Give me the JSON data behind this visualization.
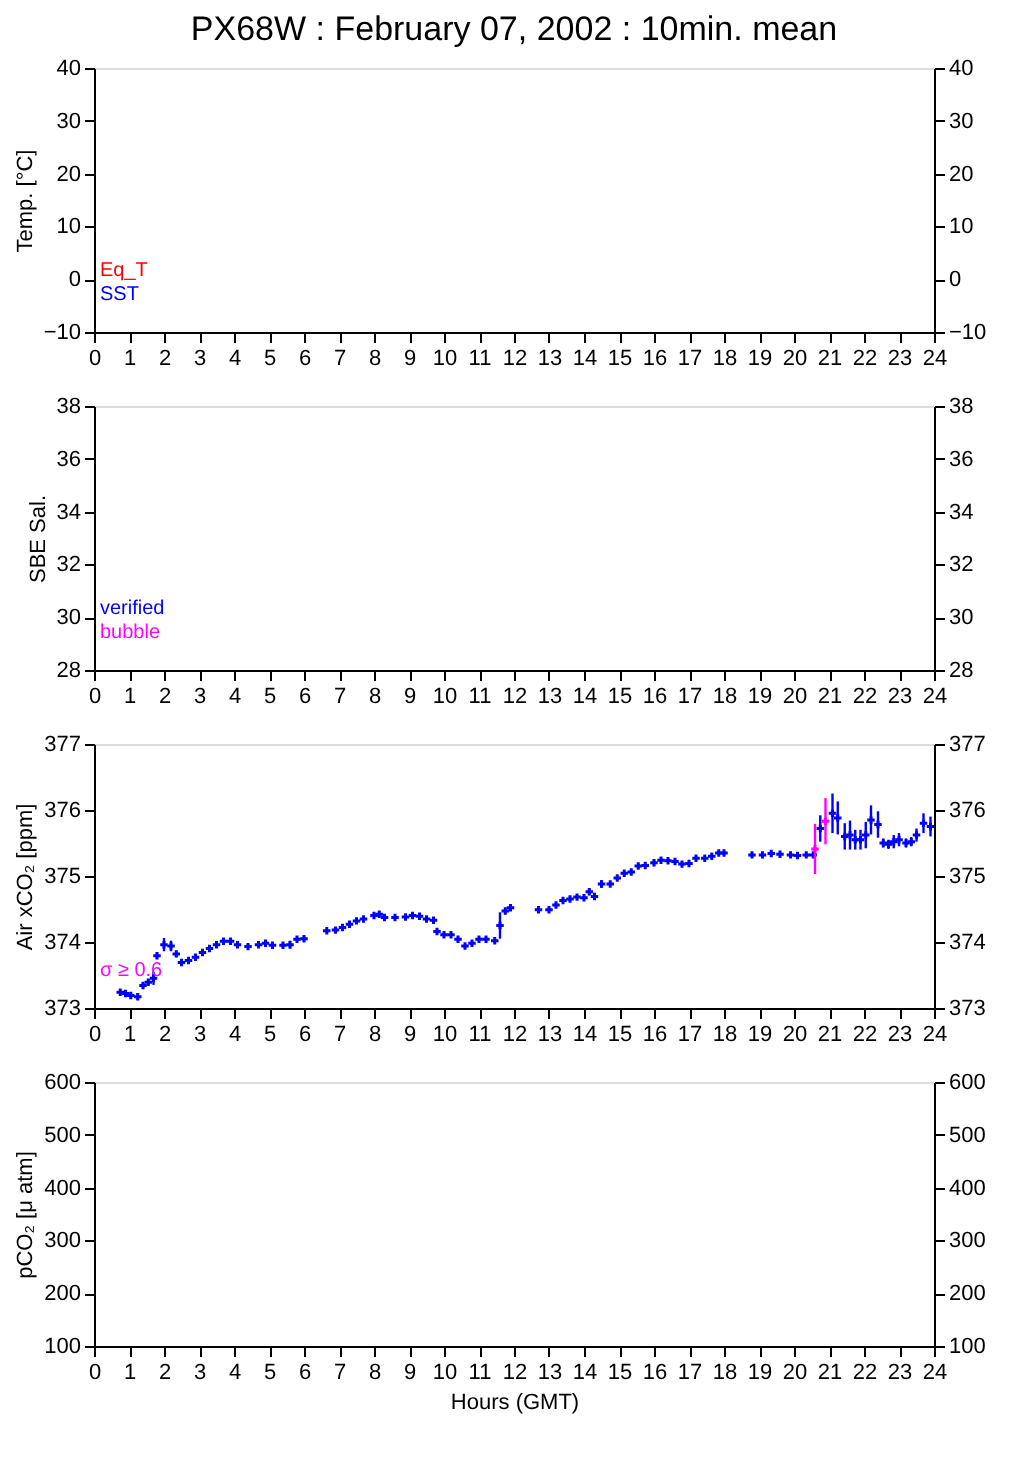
{
  "chart_data": [
    {
      "type": "scatter",
      "title": "PX68W : February 07, 2002 : 10min. mean",
      "ylabel": "Temp. [°C]",
      "xlim": [
        0,
        24
      ],
      "xticks": [
        0,
        1,
        2,
        3,
        4,
        5,
        6,
        7,
        8,
        9,
        10,
        11,
        12,
        13,
        14,
        15,
        16,
        17,
        18,
        19,
        20,
        21,
        22,
        23,
        24
      ],
      "ylim": [
        -10,
        40
      ],
      "yticks": [
        -10,
        0,
        10,
        20,
        30,
        40
      ],
      "y2lim": [
        -10,
        40
      ],
      "y2ticks": [
        -10,
        0,
        10,
        20,
        30,
        40
      ],
      "marker": "cross",
      "series": [
        {
          "name": "Eq_T",
          "color": "#ff0000",
          "x": [
            null
          ],
          "values": [
            null
          ]
        },
        {
          "name": "SST",
          "color": "#0000ff",
          "x": [
            null
          ],
          "values": [
            null
          ]
        }
      ]
    },
    {
      "type": "scatter",
      "ylabel": "SBE Sal.",
      "xlim": [
        0,
        24
      ],
      "xticks": [
        0,
        1,
        2,
        3,
        4,
        5,
        6,
        7,
        8,
        9,
        10,
        11,
        12,
        13,
        14,
        15,
        16,
        17,
        18,
        19,
        20,
        21,
        22,
        23,
        24
      ],
      "ylim": [
        28,
        38
      ],
      "yticks": [
        28,
        30,
        32,
        34,
        36,
        38
      ],
      "y2lim": [
        28,
        38
      ],
      "y2ticks": [
        28,
        30,
        32,
        34,
        36,
        38
      ],
      "marker": "cross",
      "series": [
        {
          "name": "verified",
          "color": "#0000ff",
          "x": [
            null
          ],
          "values": [
            null
          ]
        },
        {
          "name": "bubble",
          "color": "#ff00ff",
          "x": [
            null
          ],
          "values": [
            null
          ]
        }
      ]
    },
    {
      "type": "scatter",
      "ylabel": "Air xCO₂ [ppm]",
      "xlim": [
        0,
        24
      ],
      "xticks": [
        0,
        1,
        2,
        3,
        4,
        5,
        6,
        7,
        8,
        9,
        10,
        11,
        12,
        13,
        14,
        15,
        16,
        17,
        18,
        19,
        20,
        21,
        22,
        23,
        24
      ],
      "ylim": [
        373,
        377
      ],
      "yticks": [
        373,
        374,
        375,
        376,
        377
      ],
      "y2lim": [
        373,
        377
      ],
      "y2ticks": [
        373,
        374,
        375,
        376,
        377
      ],
      "marker": "cross",
      "series": [
        {
          "color": "#0000ff",
          "x": [
            0.75,
            0.9,
            1.05,
            1.25,
            1.4,
            1.55,
            1.7,
            1.8,
            2.0,
            2.2,
            2.35,
            2.5,
            2.7,
            2.9,
            3.1,
            3.3,
            3.5,
            3.7,
            3.9,
            4.1,
            4.4,
            4.7,
            4.9,
            5.1,
            5.4,
            5.6,
            5.8,
            6.0,
            6.65,
            6.9,
            7.1,
            7.3,
            7.5,
            7.7,
            8.0,
            8.15,
            8.3,
            8.6,
            8.9,
            9.1,
            9.3,
            9.5,
            9.7,
            9.8,
            10.0,
            10.2,
            10.4,
            10.6,
            10.8,
            11.0,
            11.2,
            11.45,
            11.6,
            11.75,
            11.9,
            12.7,
            13.0,
            13.2,
            13.4,
            13.6,
            13.8,
            14.0,
            14.15,
            14.3,
            14.5,
            14.75,
            14.95,
            15.15,
            15.35,
            15.55,
            15.75,
            16.0,
            16.2,
            16.4,
            16.6,
            16.8,
            17.0,
            17.2,
            17.45,
            17.65,
            17.85,
            18.0,
            18.8,
            19.1,
            19.35,
            19.6,
            19.9,
            20.1,
            20.35,
            20.55,
            20.75,
            21.1,
            21.25,
            21.45,
            21.6,
            21.75,
            21.9,
            22.05,
            22.2,
            22.4,
            22.55,
            22.7,
            22.85,
            23.0,
            23.2,
            23.35,
            23.5,
            23.7,
            23.9
          ],
          "values": [
            373.24,
            373.22,
            373.19,
            373.17,
            373.34,
            373.39,
            373.45,
            373.79,
            373.96,
            373.94,
            373.82,
            373.69,
            373.72,
            373.77,
            373.84,
            373.9,
            373.96,
            374.01,
            374.01,
            373.96,
            373.93,
            373.96,
            373.98,
            373.95,
            373.95,
            373.96,
            374.04,
            374.05,
            374.17,
            374.18,
            374.22,
            374.27,
            374.32,
            374.35,
            374.4,
            374.42,
            374.37,
            374.37,
            374.38,
            374.4,
            374.39,
            374.35,
            374.33,
            374.16,
            374.11,
            374.11,
            374.04,
            373.94,
            373.98,
            374.04,
            374.04,
            374.02,
            374.25,
            374.47,
            374.52,
            374.49,
            374.49,
            374.56,
            374.63,
            374.65,
            374.68,
            374.67,
            374.76,
            374.69,
            374.88,
            374.88,
            374.97,
            375.04,
            375.06,
            375.15,
            375.16,
            375.2,
            375.24,
            375.23,
            375.22,
            375.18,
            375.19,
            375.27,
            375.27,
            375.3,
            375.35,
            375.35,
            375.32,
            375.32,
            375.34,
            375.33,
            375.32,
            375.31,
            375.32,
            375.32,
            375.72,
            375.95,
            375.88,
            375.6,
            375.62,
            375.55,
            375.55,
            375.62,
            375.85,
            375.78,
            375.5,
            375.48,
            375.52,
            375.55,
            375.5,
            375.52,
            375.62,
            375.8,
            375.75
          ],
          "errors": [
            0.03,
            0.03,
            0.03,
            0.05,
            0.05,
            0.05,
            0.1,
            0.05,
            0.1,
            0.08,
            0.05,
            0.03,
            0.03,
            0.03,
            0.03,
            0.03,
            0.03,
            0.03,
            0.03,
            0.03,
            0.03,
            0.03,
            0.03,
            0.03,
            0.03,
            0.06,
            0.03,
            0.03,
            0.03,
            0.03,
            0.03,
            0.03,
            0.03,
            0.03,
            0.03,
            0.03,
            0.03,
            0.03,
            0.03,
            0.03,
            0.03,
            0.03,
            0.03,
            0.03,
            0.03,
            0.03,
            0.03,
            0.03,
            0.03,
            0.03,
            0.03,
            0.03,
            0.2,
            0.05,
            0.05,
            0.03,
            0.03,
            0.03,
            0.03,
            0.03,
            0.03,
            0.03,
            0.05,
            0.03,
            0.06,
            0.03,
            0.03,
            0.03,
            0.03,
            0.03,
            0.03,
            0.05,
            0.03,
            0.03,
            0.03,
            0.03,
            0.03,
            0.03,
            0.03,
            0.03,
            0.03,
            0.03,
            0.03,
            0.03,
            0.03,
            0.03,
            0.03,
            0.03,
            0.03,
            0.03,
            0.2,
            0.3,
            0.25,
            0.2,
            0.22,
            0.15,
            0.15,
            0.2,
            0.22,
            0.2,
            0.07,
            0.07,
            0.1,
            0.1,
            0.07,
            0.07,
            0.1,
            0.15,
            0.15
          ]
        },
        {
          "name": "σ ≥ 0.6",
          "color": "#ff00ff",
          "x": [
            20.6,
            20.9
          ],
          "values": [
            375.41,
            375.83
          ],
          "errors": [
            0.38,
            0.35
          ]
        }
      ]
    },
    {
      "type": "scatter",
      "ylabel": "pCO₂ [μ atm]",
      "xlabel": "Hours (GMT)",
      "xlim": [
        0,
        24
      ],
      "xticks": [
        0,
        1,
        2,
        3,
        4,
        5,
        6,
        7,
        8,
        9,
        10,
        11,
        12,
        13,
        14,
        15,
        16,
        17,
        18,
        19,
        20,
        21,
        22,
        23,
        24
      ],
      "ylim": [
        100,
        600
      ],
      "yticks": [
        100,
        200,
        300,
        400,
        500,
        600
      ],
      "y2lim": [
        100,
        600
      ],
      "y2ticks": [
        100,
        200,
        300,
        400,
        500,
        600
      ],
      "marker": "cross"
    }
  ]
}
